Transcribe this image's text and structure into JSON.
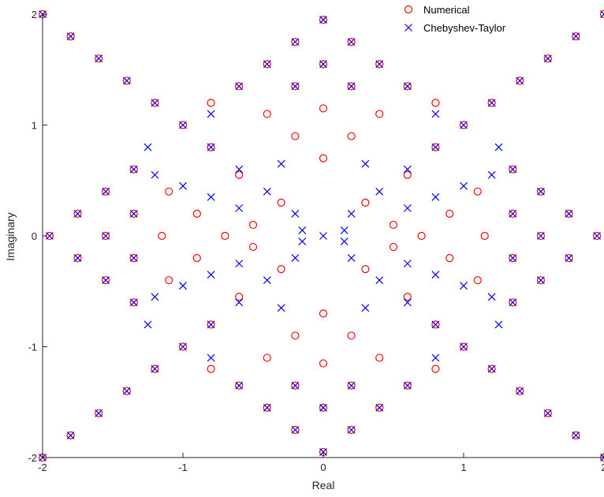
{
  "chart_data": {
    "type": "scatter",
    "title": "",
    "xlabel": "Real",
    "ylabel": "Imaginary",
    "xlim": [
      -2,
      2
    ],
    "ylim": [
      -2,
      2
    ],
    "xticks": [
      -2,
      -1,
      0,
      1,
      2
    ],
    "yticks": [
      -2,
      -1,
      0,
      1,
      2
    ],
    "xtick_labels": [
      "-2",
      "-1",
      "0",
      "1",
      "2"
    ],
    "ytick_labels": [
      "-2",
      "-1",
      "0",
      "1",
      "2"
    ],
    "grid": false,
    "legend": {
      "placement": "top-right",
      "box": false
    },
    "series": [
      {
        "name": "Numerical",
        "marker": "circle",
        "color": "#ff0000",
        "values": [
          [
            -2.0,
            2.0
          ],
          [
            -1.8,
            1.8
          ],
          [
            -1.6,
            1.6
          ],
          [
            -1.4,
            1.4
          ],
          [
            -1.2,
            1.2
          ],
          [
            -1.0,
            1.0
          ],
          [
            -0.8,
            0.8
          ],
          [
            2.0,
            2.0
          ],
          [
            1.8,
            1.8
          ],
          [
            1.6,
            1.6
          ],
          [
            1.4,
            1.4
          ],
          [
            1.2,
            1.2
          ],
          [
            1.0,
            1.0
          ],
          [
            0.8,
            0.8
          ],
          [
            -2.0,
            -2.0
          ],
          [
            -1.8,
            -1.8
          ],
          [
            -1.6,
            -1.6
          ],
          [
            -1.4,
            -1.4
          ],
          [
            -1.2,
            -1.2
          ],
          [
            -1.0,
            -1.0
          ],
          [
            -0.8,
            -0.8
          ],
          [
            2.0,
            -2.0
          ],
          [
            1.8,
            -1.8
          ],
          [
            1.6,
            -1.6
          ],
          [
            1.4,
            -1.4
          ],
          [
            1.2,
            -1.2
          ],
          [
            1.0,
            -1.0
          ],
          [
            0.8,
            -0.8
          ],
          [
            0.0,
            1.95
          ],
          [
            -0.2,
            1.75
          ],
          [
            0.2,
            1.75
          ],
          [
            -0.4,
            1.55
          ],
          [
            0.0,
            1.55
          ],
          [
            0.4,
            1.55
          ],
          [
            -0.6,
            1.35
          ],
          [
            -0.2,
            1.35
          ],
          [
            0.2,
            1.35
          ],
          [
            0.6,
            1.35
          ],
          [
            -0.4,
            1.1
          ],
          [
            0.0,
            1.15
          ],
          [
            0.4,
            1.1
          ],
          [
            -0.2,
            0.9
          ],
          [
            0.2,
            0.9
          ],
          [
            0.0,
            0.7
          ],
          [
            -0.8,
            1.2
          ],
          [
            0.8,
            1.2
          ],
          [
            0.0,
            -1.95
          ],
          [
            -0.2,
            -1.75
          ],
          [
            0.2,
            -1.75
          ],
          [
            -0.4,
            -1.55
          ],
          [
            0.0,
            -1.55
          ],
          [
            0.4,
            -1.55
          ],
          [
            -0.6,
            -1.35
          ],
          [
            -0.2,
            -1.35
          ],
          [
            0.2,
            -1.35
          ],
          [
            0.6,
            -1.35
          ],
          [
            -0.4,
            -1.1
          ],
          [
            0.0,
            -1.15
          ],
          [
            0.4,
            -1.1
          ],
          [
            -0.2,
            -0.9
          ],
          [
            0.2,
            -0.9
          ],
          [
            0.0,
            -0.7
          ],
          [
            -0.8,
            -1.2
          ],
          [
            0.8,
            -1.2
          ],
          [
            -1.95,
            0.0
          ],
          [
            -1.75,
            0.2
          ],
          [
            -1.75,
            -0.2
          ],
          [
            -1.55,
            0.4
          ],
          [
            -1.55,
            0.0
          ],
          [
            -1.55,
            -0.4
          ],
          [
            -1.35,
            0.6
          ],
          [
            -1.35,
            0.2
          ],
          [
            -1.35,
            -0.2
          ],
          [
            -1.35,
            -0.6
          ],
          [
            -1.1,
            0.4
          ],
          [
            -1.15,
            0.0
          ],
          [
            -1.1,
            -0.4
          ],
          [
            -0.9,
            0.2
          ],
          [
            -0.9,
            -0.2
          ],
          [
            -0.7,
            0.0
          ],
          [
            -0.5,
            0.1
          ],
          [
            -0.5,
            -0.1
          ],
          [
            1.95,
            0.0
          ],
          [
            1.75,
            0.2
          ],
          [
            1.75,
            -0.2
          ],
          [
            1.55,
            0.4
          ],
          [
            1.55,
            0.0
          ],
          [
            1.55,
            -0.4
          ],
          [
            1.35,
            0.6
          ],
          [
            1.35,
            0.2
          ],
          [
            1.35,
            -0.2
          ],
          [
            1.35,
            -0.6
          ],
          [
            1.1,
            0.4
          ],
          [
            1.15,
            0.0
          ],
          [
            1.1,
            -0.4
          ],
          [
            0.9,
            0.2
          ],
          [
            0.9,
            -0.2
          ],
          [
            0.7,
            0.0
          ],
          [
            0.5,
            0.1
          ],
          [
            0.5,
            -0.1
          ],
          [
            -0.3,
            0.3
          ],
          [
            0.3,
            0.3
          ],
          [
            -0.3,
            -0.3
          ],
          [
            0.3,
            -0.3
          ],
          [
            -0.6,
            0.55
          ],
          [
            0.6,
            0.55
          ],
          [
            -0.6,
            -0.55
          ],
          [
            0.6,
            -0.55
          ]
        ]
      },
      {
        "name": "Chebyshev-Taylor",
        "marker": "x",
        "color": "#0000ff",
        "values": [
          [
            -2.0,
            2.0
          ],
          [
            -1.8,
            1.8
          ],
          [
            -1.6,
            1.6
          ],
          [
            -1.4,
            1.4
          ],
          [
            -1.2,
            1.2
          ],
          [
            -1.0,
            1.0
          ],
          [
            -0.8,
            0.8
          ],
          [
            -0.6,
            0.6
          ],
          [
            -0.4,
            0.4
          ],
          [
            -0.2,
            0.2
          ],
          [
            2.0,
            2.0
          ],
          [
            1.8,
            1.8
          ],
          [
            1.6,
            1.6
          ],
          [
            1.4,
            1.4
          ],
          [
            1.2,
            1.2
          ],
          [
            1.0,
            1.0
          ],
          [
            0.8,
            0.8
          ],
          [
            0.6,
            0.6
          ],
          [
            0.4,
            0.4
          ],
          [
            0.2,
            0.2
          ],
          [
            -2.0,
            -2.0
          ],
          [
            -1.8,
            -1.8
          ],
          [
            -1.6,
            -1.6
          ],
          [
            -1.4,
            -1.4
          ],
          [
            -1.2,
            -1.2
          ],
          [
            -1.0,
            -1.0
          ],
          [
            -0.8,
            -0.8
          ],
          [
            -0.6,
            -0.6
          ],
          [
            -0.4,
            -0.4
          ],
          [
            -0.2,
            -0.2
          ],
          [
            2.0,
            -2.0
          ],
          [
            1.8,
            -1.8
          ],
          [
            1.6,
            -1.6
          ],
          [
            1.4,
            -1.4
          ],
          [
            1.2,
            -1.2
          ],
          [
            1.0,
            -1.0
          ],
          [
            0.8,
            -0.8
          ],
          [
            0.6,
            -0.6
          ],
          [
            0.4,
            -0.4
          ],
          [
            0.2,
            -0.2
          ],
          [
            0.0,
            0.0
          ],
          [
            -1.25,
            0.8
          ],
          [
            1.25,
            0.8
          ],
          [
            -1.25,
            -0.8
          ],
          [
            1.25,
            -0.8
          ],
          [
            -1.2,
            0.55
          ],
          [
            -1.0,
            0.45
          ],
          [
            -0.8,
            0.35
          ],
          [
            -0.6,
            0.25
          ],
          [
            1.2,
            0.55
          ],
          [
            1.0,
            0.45
          ],
          [
            0.8,
            0.35
          ],
          [
            0.6,
            0.25
          ],
          [
            -1.2,
            -0.55
          ],
          [
            -1.0,
            -0.45
          ],
          [
            -0.8,
            -0.35
          ],
          [
            -0.6,
            -0.25
          ],
          [
            1.2,
            -0.55
          ],
          [
            1.0,
            -0.45
          ],
          [
            0.8,
            -0.35
          ],
          [
            0.6,
            -0.25
          ],
          [
            0.0,
            1.95
          ],
          [
            -0.2,
            1.75
          ],
          [
            0.2,
            1.75
          ],
          [
            -0.4,
            1.55
          ],
          [
            0.0,
            1.55
          ],
          [
            0.4,
            1.55
          ],
          [
            -0.6,
            1.35
          ],
          [
            -0.2,
            1.35
          ],
          [
            0.2,
            1.35
          ],
          [
            0.6,
            1.35
          ],
          [
            -0.3,
            0.65
          ],
          [
            0.3,
            0.65
          ],
          [
            0.0,
            -1.95
          ],
          [
            -0.2,
            -1.75
          ],
          [
            0.2,
            -1.75
          ],
          [
            -0.4,
            -1.55
          ],
          [
            0.0,
            -1.55
          ],
          [
            0.4,
            -1.55
          ],
          [
            -0.6,
            -1.35
          ],
          [
            -0.2,
            -1.35
          ],
          [
            0.2,
            -1.35
          ],
          [
            0.6,
            -1.35
          ],
          [
            -0.3,
            -0.65
          ],
          [
            0.3,
            -0.65
          ],
          [
            -1.95,
            0.0
          ],
          [
            -1.75,
            0.2
          ],
          [
            -1.75,
            -0.2
          ],
          [
            -1.55,
            0.4
          ],
          [
            -1.55,
            0.0
          ],
          [
            -1.55,
            -0.4
          ],
          [
            -1.35,
            0.6
          ],
          [
            -1.35,
            0.2
          ],
          [
            -1.35,
            -0.2
          ],
          [
            -1.35,
            -0.6
          ],
          [
            1.95,
            0.0
          ],
          [
            1.75,
            0.2
          ],
          [
            1.75,
            -0.2
          ],
          [
            1.55,
            0.4
          ],
          [
            1.55,
            0.0
          ],
          [
            1.55,
            -0.4
          ],
          [
            1.35,
            0.6
          ],
          [
            1.35,
            0.2
          ],
          [
            1.35,
            -0.2
          ],
          [
            1.35,
            -0.6
          ],
          [
            -0.8,
            1.1
          ],
          [
            0.8,
            1.1
          ],
          [
            -0.8,
            -1.1
          ],
          [
            0.8,
            -1.1
          ],
          [
            -0.15,
            0.05
          ],
          [
            0.15,
            0.05
          ],
          [
            -0.15,
            -0.05
          ],
          [
            0.15,
            -0.05
          ]
        ]
      }
    ]
  }
}
